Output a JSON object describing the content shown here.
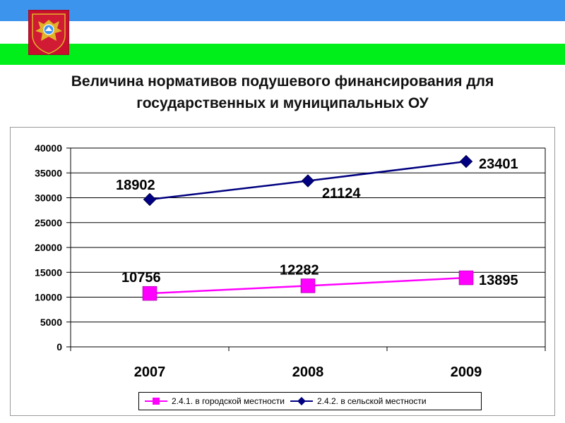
{
  "title_line1": "Величина нормативов подушевого финансирования для",
  "title_line2": "государственных и муниципальных ОУ",
  "colors": {
    "flag_blue": "#3d94ec",
    "flag_white": "#ffffff",
    "flag_green": "#00ee1a",
    "emblem_red": "#c8102e",
    "emblem_gold": "#e0b32a"
  },
  "chart_data": {
    "type": "line",
    "title": "Величина нормативов подушевого финансирования для государственных и муниципальных ОУ",
    "categories": [
      "2007",
      "2008",
      "2009"
    ],
    "ylim": [
      0,
      40000
    ],
    "yticks": [
      "0",
      "5000",
      "10000",
      "15000",
      "20000",
      "25000",
      "30000",
      "35000",
      "40000"
    ],
    "grid": true,
    "legend_position": "bottom",
    "series": [
      {
        "name": "2.4.1. в городской местности",
        "color": "#ff00ff",
        "marker": "square",
        "values": [
          10756,
          12282,
          13895
        ],
        "labels": [
          "10756",
          "12282",
          "13895"
        ]
      },
      {
        "name": "2.4.2. в сельской местности",
        "color": "#000080",
        "marker": "diamond",
        "values": [
          29658,
          33400,
          37300
        ],
        "labels": [
          "18902",
          "21124",
          "23401"
        ]
      }
    ]
  }
}
